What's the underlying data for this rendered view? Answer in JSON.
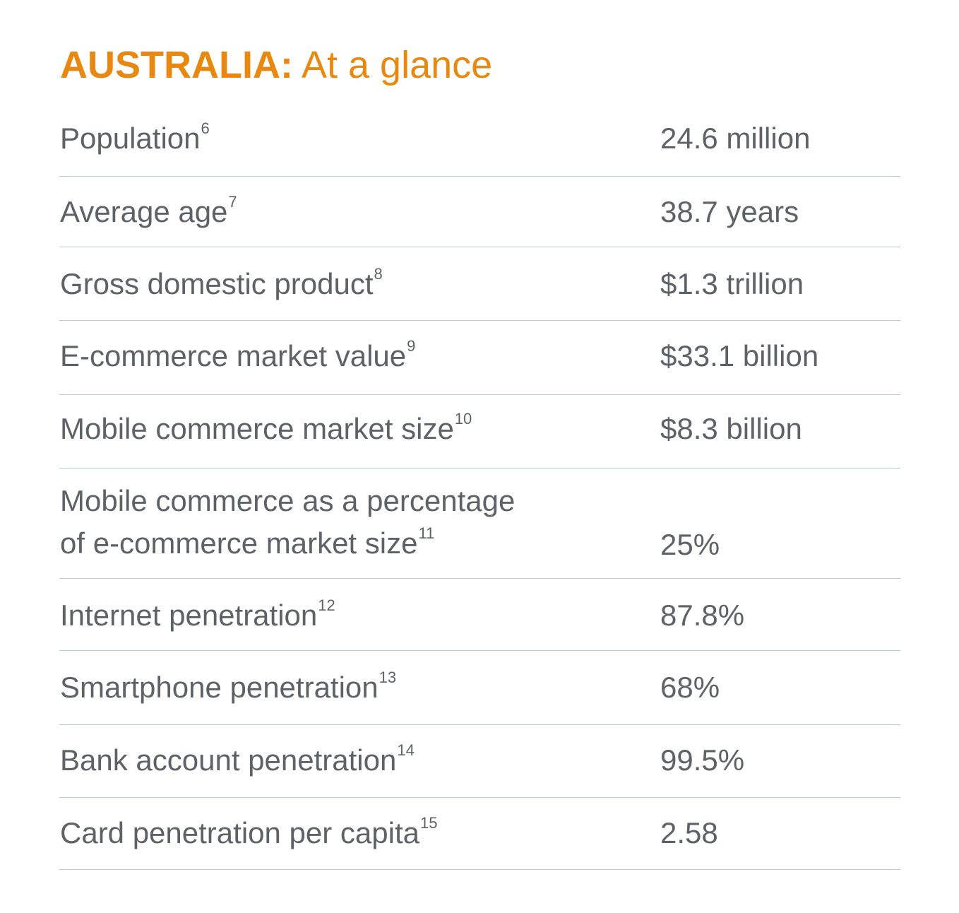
{
  "title": {
    "country": "AUSTRALIA:",
    "subtitle": "At a glance"
  },
  "rows": [
    {
      "label": "Population",
      "sup": "6",
      "value": "24.6 million"
    },
    {
      "label": "Average age",
      "sup": "7",
      "value": "38.7 years"
    },
    {
      "label": "Gross domestic product",
      "sup": "8",
      "value": "$1.3 trillion"
    },
    {
      "label": "E-commerce market value",
      "sup": "9",
      "value": "$33.1 billion"
    },
    {
      "label": "Mobile commerce market size",
      "sup": "10",
      "value": "$8.3 billion"
    },
    {
      "label_line1": "Mobile commerce as a percentage",
      "label": "of e-commerce market size",
      "sup": "11",
      "value": "25%"
    },
    {
      "label": "Internet penetration",
      "sup": "12",
      "value": "87.8%"
    },
    {
      "label": "Smartphone penetration",
      "sup": "13",
      "value": "68%"
    },
    {
      "label": "Bank account penetration",
      "sup": "14",
      "value": "99.5%"
    },
    {
      "label": "Card penetration per capita",
      "sup": "15",
      "value": "2.58"
    }
  ]
}
